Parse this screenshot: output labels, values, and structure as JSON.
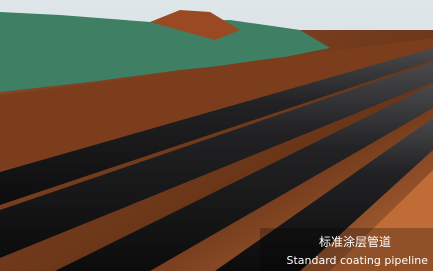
{
  "caption": {
    "chinese": "标准涂层管道",
    "english": "Standard coating pipeline"
  }
}
